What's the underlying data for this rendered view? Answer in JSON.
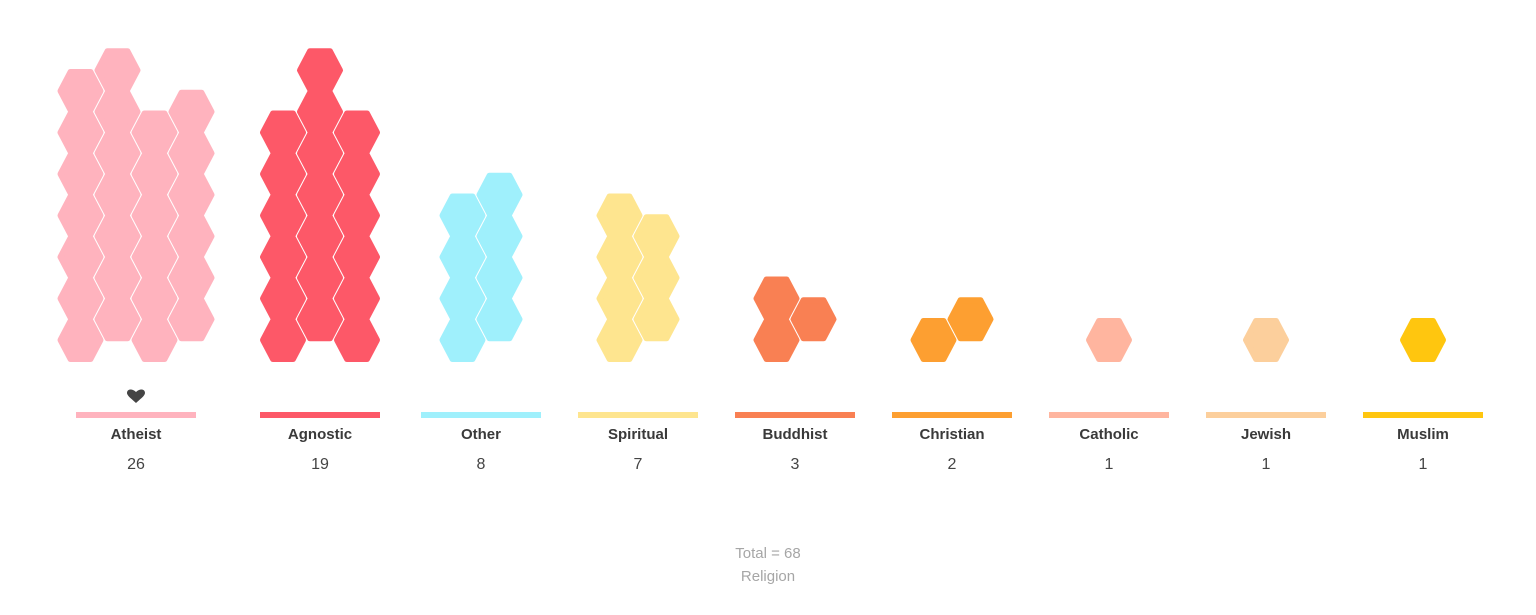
{
  "chart_data": {
    "type": "bar",
    "mark": "hexagon",
    "categories": [
      "Atheist",
      "Agnostic",
      "Other",
      "Spiritual",
      "Buddhist",
      "Christian",
      "Catholic",
      "Jewish",
      "Muslim"
    ],
    "values": [
      26,
      19,
      8,
      7,
      3,
      2,
      1,
      1,
      1
    ],
    "colors": [
      "#ffb3be",
      "#fd5868",
      "#9ff0fc",
      "#fee58f",
      "#f98053",
      "#fd9f31",
      "#ffb59f",
      "#fccf9c",
      "#ffc60f"
    ],
    "highlight_icon": "heart-icon",
    "highlight_category": "Atheist",
    "total_label": "Total = 68",
    "subtitle": "Religion"
  }
}
